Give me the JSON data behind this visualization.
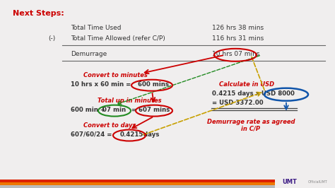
{
  "bg_color": "#f0eeee",
  "title_text": "Next Steps:",
  "title_color": "#cc0000",
  "row1_label": "Total Time Used",
  "row1_value": "126 hrs 38 mins",
  "row2_prefix": "(-)",
  "row2_label": "Total Time Allowed (refer C/P)",
  "row2_value": "116 hrs 31 mins",
  "row3_label": "Demurrage",
  "row3_value": "10 hrs 07 mins",
  "step1_title": "Convert to minutes",
  "step1_eq": "10 hrs x 60 min = ",
  "step1_bold": "600 mins",
  "step2_title": "Total up in minutes",
  "step2_eq_pre": "600 min + ",
  "step2_eq_mid": "07 min",
  "step2_eq_post": " = ",
  "step2_bold": "607 mins",
  "step3_title": "Convert to days",
  "step3_eq": "607/60/24 = ",
  "step3_bold": "0.4215",
  "step3_suffix": " days",
  "step4_title": "Calculate in USD",
  "step4_line1_pre": "0.4215 days x ",
  "step4_line1_bold": "USD 8000",
  "step4_line2": "= USD 3372.00",
  "step5_title": "Demurrage rate as agreed\nin C/P",
  "red": "#cc0000",
  "green": "#228B22",
  "blue": "#1155aa",
  "dark": "#333333",
  "gold": "#c8a000",
  "footer_purple": "#3d1c85",
  "footer_red": "#dd2200",
  "footer_orange": "#ee7700",
  "footer_grey": "#bbbbbb",
  "footer_white": "#ffffff"
}
